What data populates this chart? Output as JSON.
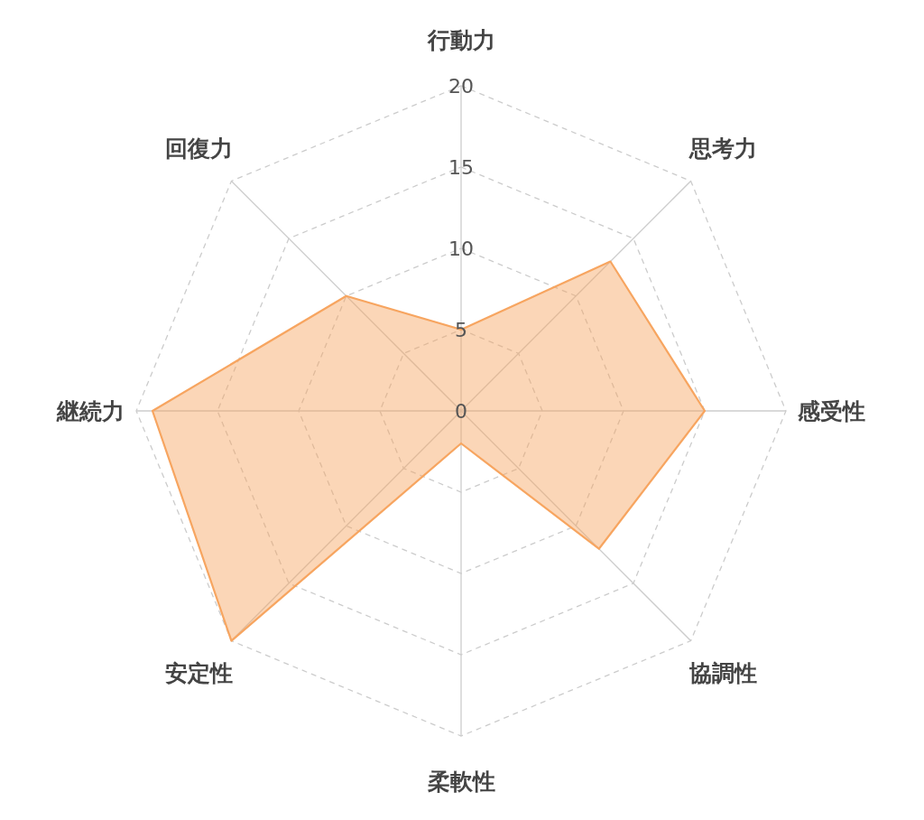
{
  "chart_data": {
    "type": "radar",
    "categories": [
      "行動力",
      "思考力",
      "感受性",
      "協調性",
      "柔軟性",
      "安定性",
      "継続力",
      "回復力"
    ],
    "series": [
      {
        "color": "#f7a560",
        "values": [
          5,
          13,
          15,
          12,
          2,
          20,
          19,
          10
        ]
      }
    ],
    "ylim": [
      0,
      20
    ],
    "yticks": [
      0,
      5,
      10,
      15,
      20
    ],
    "grid": true
  }
}
